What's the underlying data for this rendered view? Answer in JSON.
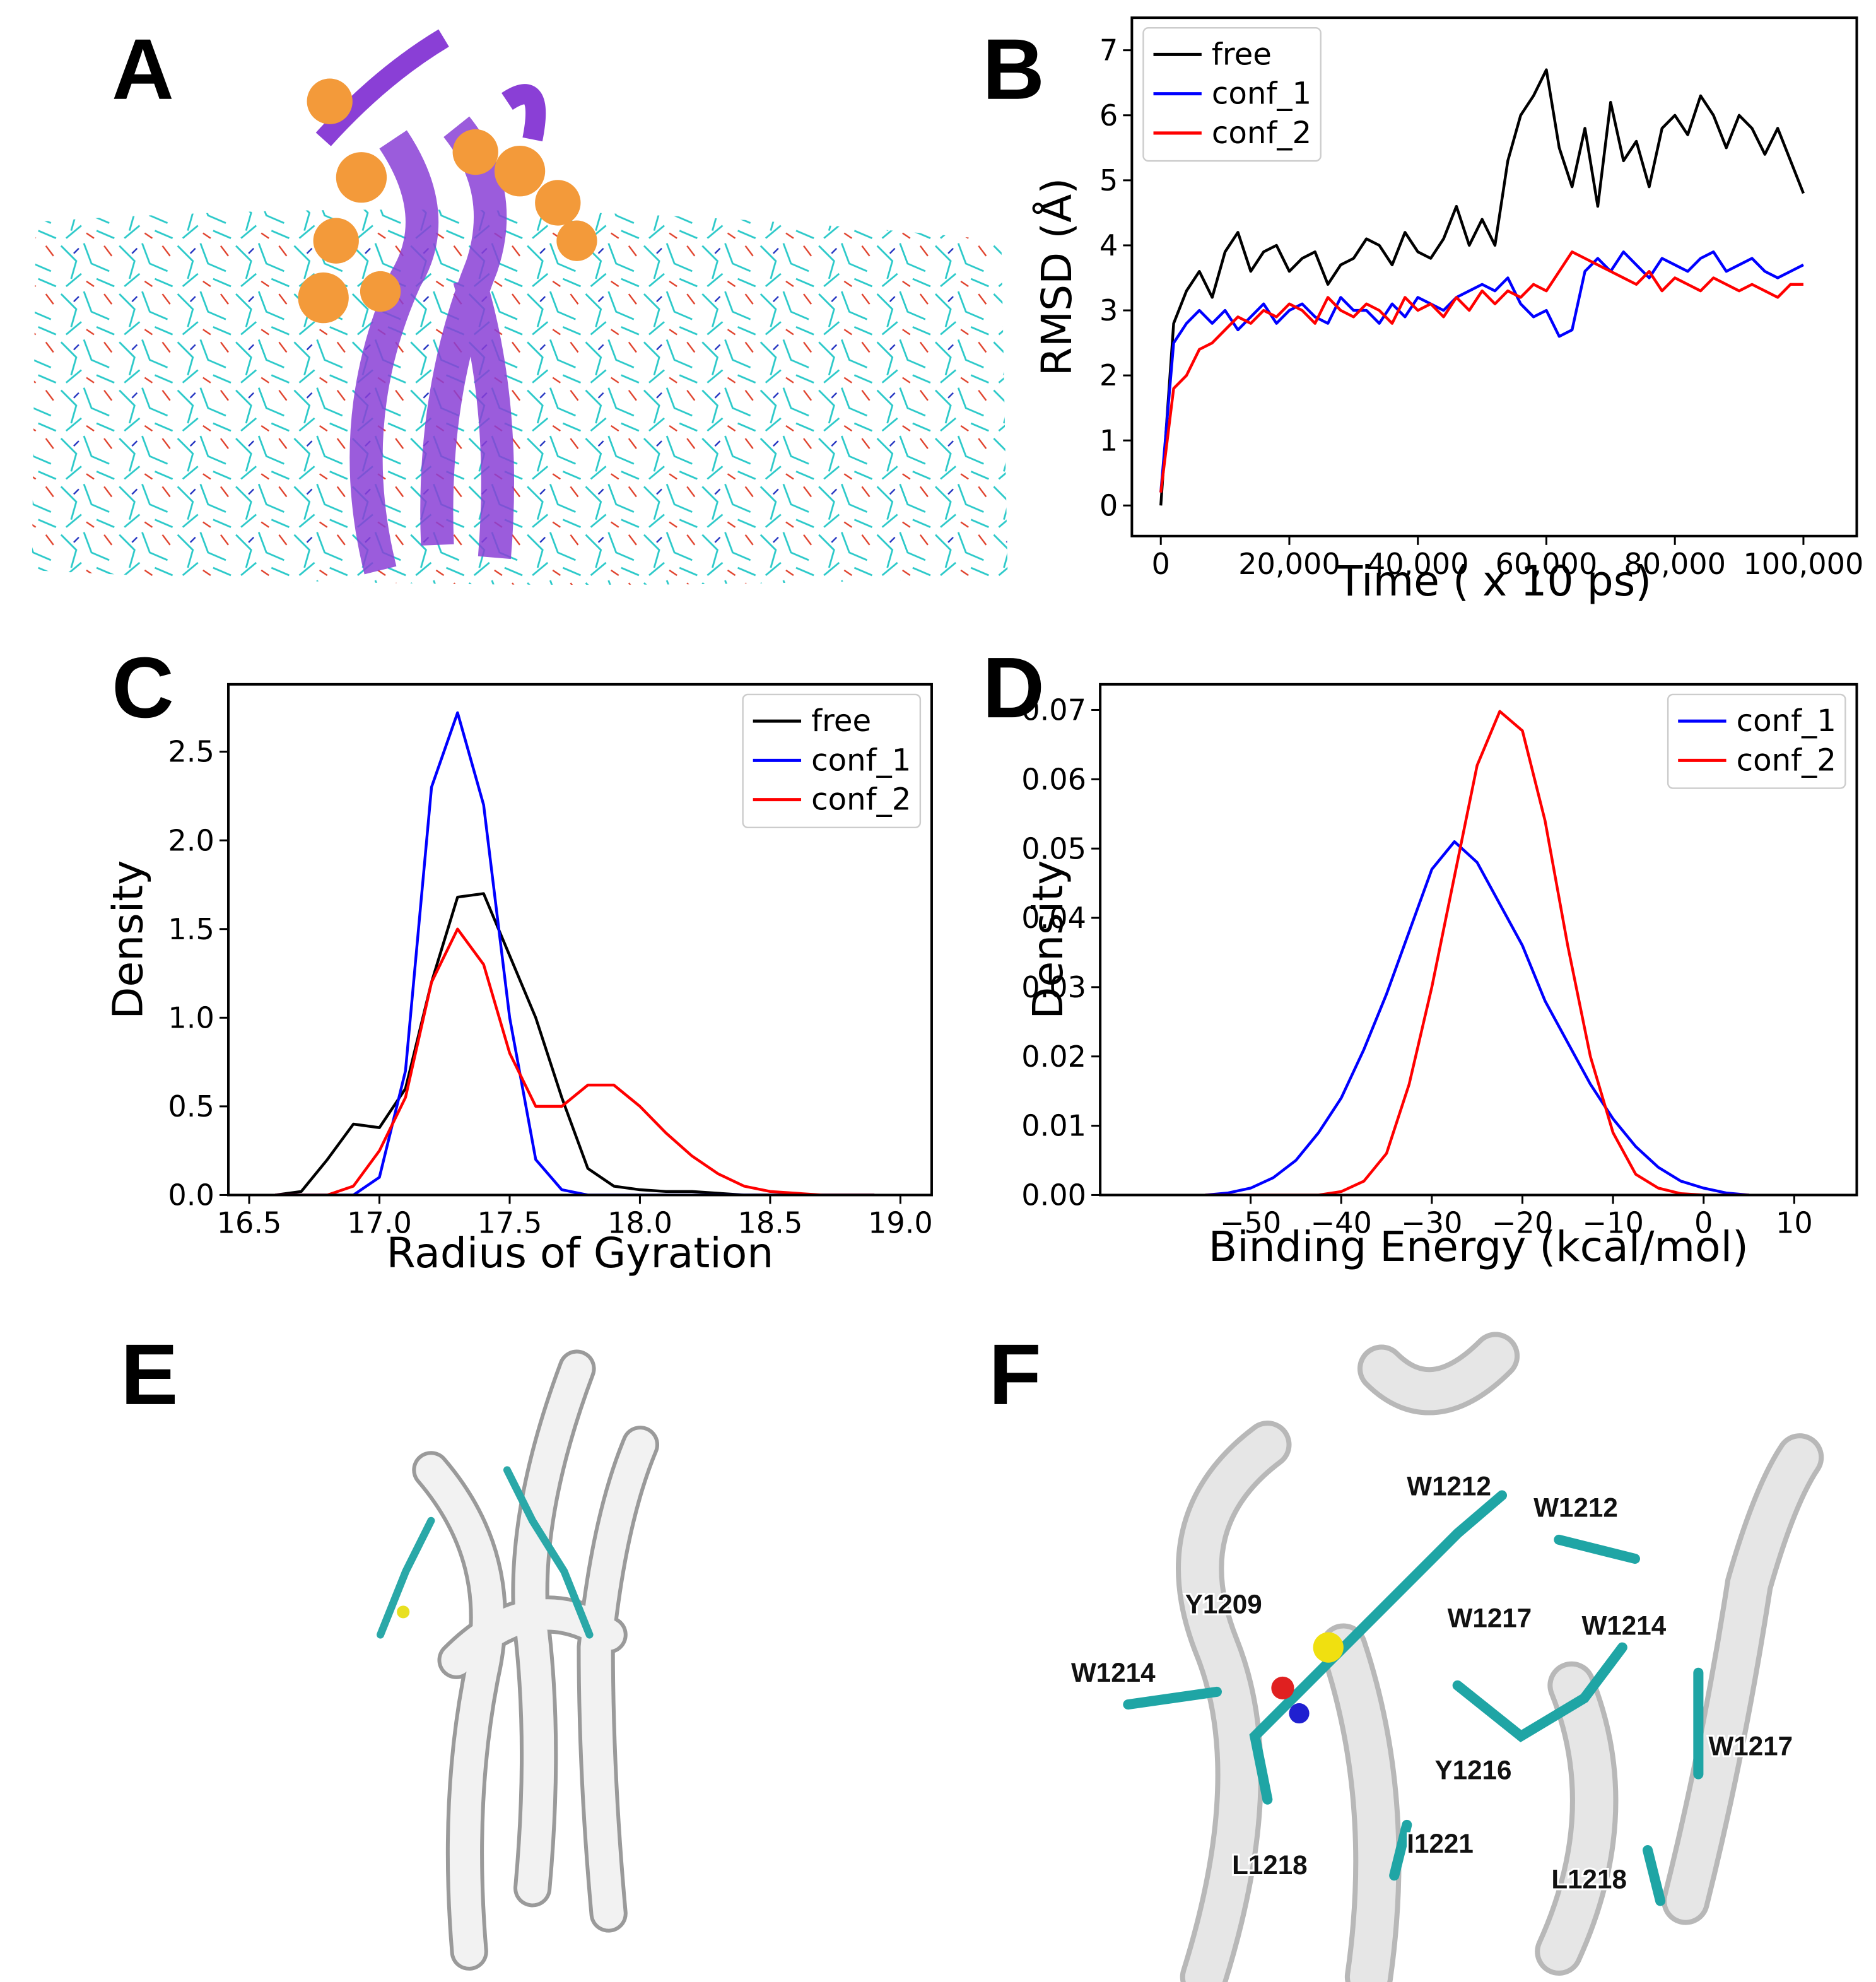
{
  "panel_labels": [
    "A",
    "B",
    "C",
    "D",
    "E",
    "F"
  ],
  "residue_labels": [
    "W1212",
    "W1212",
    "Y1209",
    "W1217",
    "W1214",
    "W1214",
    "Y1216",
    "W1217",
    "I1221",
    "L1218",
    "L1218"
  ],
  "chart_data": [
    {
      "type": "line",
      "xlabel": "Time ( x 10 ps)",
      "ylabel": "RMSD (Å)",
      "legend": "upper left",
      "xlim": [
        -4500,
        108300
      ],
      "ylim": [
        -0.47,
        7.5
      ],
      "xticks": [
        0,
        {
          "value": 20000,
          "label": "20,000"
        },
        {
          "value": 40000,
          "label": "40,000"
        },
        {
          "value": 60000,
          "label": "60,000"
        },
        {
          "value": 80000,
          "label": "80,000"
        },
        {
          "value": 100000,
          "label": "100,000"
        }
      ],
      "yticks": [
        0,
        1,
        2,
        3,
        4,
        5,
        6,
        7
      ],
      "x": [
        0,
        2000,
        4000,
        6000,
        8000,
        10000,
        12000,
        14000,
        16000,
        18000,
        20000,
        22000,
        24000,
        26000,
        28000,
        30000,
        32000,
        34000,
        36000,
        38000,
        40000,
        42000,
        44000,
        46000,
        48000,
        50000,
        52000,
        54000,
        56000,
        58000,
        60000,
        62000,
        64000,
        66000,
        68000,
        70000,
        72000,
        74000,
        76000,
        78000,
        80000,
        82000,
        84000,
        86000,
        88000,
        90000,
        92000,
        94000,
        96000,
        98000,
        100000
      ],
      "series": [
        {
          "name": "free",
          "color": "#000000",
          "values": [
            0,
            2.8,
            3.3,
            3.6,
            3.2,
            3.9,
            4.2,
            3.6,
            3.9,
            4.0,
            3.6,
            3.8,
            3.9,
            3.4,
            3.7,
            3.8,
            4.1,
            4.0,
            3.7,
            4.2,
            3.9,
            3.8,
            4.1,
            4.6,
            4.0,
            4.4,
            4.0,
            5.3,
            6.0,
            6.3,
            6.7,
            5.5,
            4.9,
            5.8,
            4.6,
            6.2,
            5.3,
            5.6,
            4.9,
            5.8,
            6.0,
            5.7,
            6.3,
            6.0,
            5.5,
            6.0,
            5.8,
            5.4,
            5.8,
            5.3,
            4.8
          ]
        },
        {
          "name": "conf_1",
          "color": "#0000ff",
          "values": [
            0.2,
            2.5,
            2.8,
            3.0,
            2.8,
            3.0,
            2.7,
            2.9,
            3.1,
            2.8,
            3.0,
            3.1,
            2.9,
            2.8,
            3.2,
            3.0,
            3.0,
            2.8,
            3.1,
            2.9,
            3.2,
            3.1,
            3.0,
            3.2,
            3.3,
            3.4,
            3.3,
            3.5,
            3.1,
            2.9,
            3.0,
            2.6,
            2.7,
            3.6,
            3.8,
            3.6,
            3.9,
            3.7,
            3.5,
            3.8,
            3.7,
            3.6,
            3.8,
            3.9,
            3.6,
            3.7,
            3.8,
            3.6,
            3.5,
            3.6,
            3.7
          ]
        },
        {
          "name": "conf_2",
          "color": "#ff0000",
          "values": [
            0.2,
            1.8,
            2.0,
            2.4,
            2.5,
            2.7,
            2.9,
            2.8,
            3.0,
            2.9,
            3.1,
            3.0,
            2.8,
            3.2,
            3.0,
            2.9,
            3.1,
            3.0,
            2.8,
            3.2,
            3.0,
            3.1,
            2.9,
            3.2,
            3.0,
            3.3,
            3.1,
            3.3,
            3.2,
            3.4,
            3.3,
            3.6,
            3.9,
            3.8,
            3.7,
            3.6,
            3.5,
            3.4,
            3.6,
            3.3,
            3.5,
            3.4,
            3.3,
            3.5,
            3.4,
            3.3,
            3.4,
            3.3,
            3.2,
            3.4,
            3.4
          ]
        }
      ]
    },
    {
      "type": "line",
      "xlabel": "Radius of Gyration",
      "ylabel": "Density",
      "legend": "upper right",
      "xlim": [
        16.42,
        19.12
      ],
      "ylim": [
        0,
        2.88
      ],
      "xticks": [
        16.5,
        {
          "value": 17,
          "label": "17.0"
        },
        17.5,
        {
          "value": 18,
          "label": "18.0"
        },
        18.5,
        {
          "value": 19,
          "label": "19.0"
        }
      ],
      "yticks": [
        {
          "value": 0,
          "label": "0.0"
        },
        0.5,
        {
          "value": 1,
          "label": "1.0"
        },
        1.5,
        {
          "value": 2,
          "label": "2.0"
        },
        2.5
      ],
      "x": [
        16.6,
        16.7,
        16.8,
        16.9,
        17.0,
        17.1,
        17.2,
        17.3,
        17.4,
        17.5,
        17.6,
        17.7,
        17.8,
        17.9,
        18.0,
        18.1,
        18.2,
        18.3,
        18.4,
        18.5,
        18.6,
        18.7,
        18.8,
        18.9
      ],
      "series": [
        {
          "name": "free",
          "color": "#000000",
          "values": [
            0,
            0.02,
            0.2,
            0.4,
            0.38,
            0.6,
            1.2,
            1.68,
            1.7,
            1.35,
            1.0,
            0.55,
            0.15,
            0.05,
            0.03,
            0.02,
            0.02,
            0.01,
            0,
            0,
            0,
            0,
            0,
            0
          ]
        },
        {
          "name": "conf_1",
          "color": "#0000ff",
          "values": [
            0,
            0,
            0,
            0,
            0.1,
            0.7,
            2.3,
            2.72,
            2.2,
            1.0,
            0.2,
            0.03,
            0,
            0,
            0,
            0,
            0,
            0,
            0,
            0,
            0,
            0,
            0,
            0
          ]
        },
        {
          "name": "conf_2",
          "color": "#ff0000",
          "values": [
            0,
            0,
            0,
            0.05,
            0.25,
            0.55,
            1.2,
            1.5,
            1.3,
            0.8,
            0.5,
            0.5,
            0.62,
            0.62,
            0.5,
            0.35,
            0.22,
            0.12,
            0.05,
            0.02,
            0.01,
            0,
            0,
            0
          ]
        }
      ]
    },
    {
      "type": "line",
      "xlabel": "Binding Energy (kcal/mol)",
      "ylabel": "Density",
      "legend": "upper right",
      "xlim": [
        -66.6,
        16.9
      ],
      "ylim": [
        0,
        0.0737
      ],
      "xticks": [
        {
          "value": -50,
          "label": "−50"
        },
        {
          "value": -40,
          "label": "−40"
        },
        {
          "value": -30,
          "label": "−30"
        },
        {
          "value": -20,
          "label": "−20"
        },
        {
          "value": -10,
          "label": "−10"
        },
        0,
        10
      ],
      "yticks": [
        {
          "value": 0,
          "label": "0.00"
        },
        {
          "value": 0.01,
          "label": "0.01"
        },
        {
          "value": 0.02,
          "label": "0.02"
        },
        {
          "value": 0.03,
          "label": "0.03"
        },
        {
          "value": 0.04,
          "label": "0.04"
        },
        {
          "value": 0.05,
          "label": "0.05"
        },
        {
          "value": 0.06,
          "label": "0.06"
        },
        {
          "value": 0.07,
          "label": "0.07"
        }
      ],
      "x": [
        -55,
        -52.5,
        -50,
        -47.5,
        -45,
        -42.5,
        -40,
        -37.5,
        -35,
        -32.5,
        -30,
        -27.5,
        -25,
        -22.5,
        -20,
        -17.5,
        -15,
        -12.5,
        -10,
        -7.5,
        -5,
        -2.5,
        0,
        2.5,
        5
      ],
      "series": [
        {
          "name": "conf_1",
          "color": "#0000ff",
          "values": [
            0,
            0.0003,
            0.001,
            0.0025,
            0.005,
            0.009,
            0.014,
            0.021,
            0.029,
            0.038,
            0.047,
            0.051,
            0.048,
            0.042,
            0.036,
            0.028,
            0.022,
            0.016,
            0.011,
            0.007,
            0.004,
            0.002,
            0.001,
            0.0003,
            0
          ]
        },
        {
          "name": "conf_2",
          "color": "#ff0000",
          "values": [
            0,
            0,
            0,
            0,
            0,
            0,
            0.0005,
            0.002,
            0.006,
            0.016,
            0.03,
            0.046,
            0.062,
            0.0698,
            0.067,
            0.054,
            0.036,
            0.02,
            0.009,
            0.003,
            0.001,
            0.0002,
            0,
            0,
            0
          ]
        }
      ]
    }
  ]
}
